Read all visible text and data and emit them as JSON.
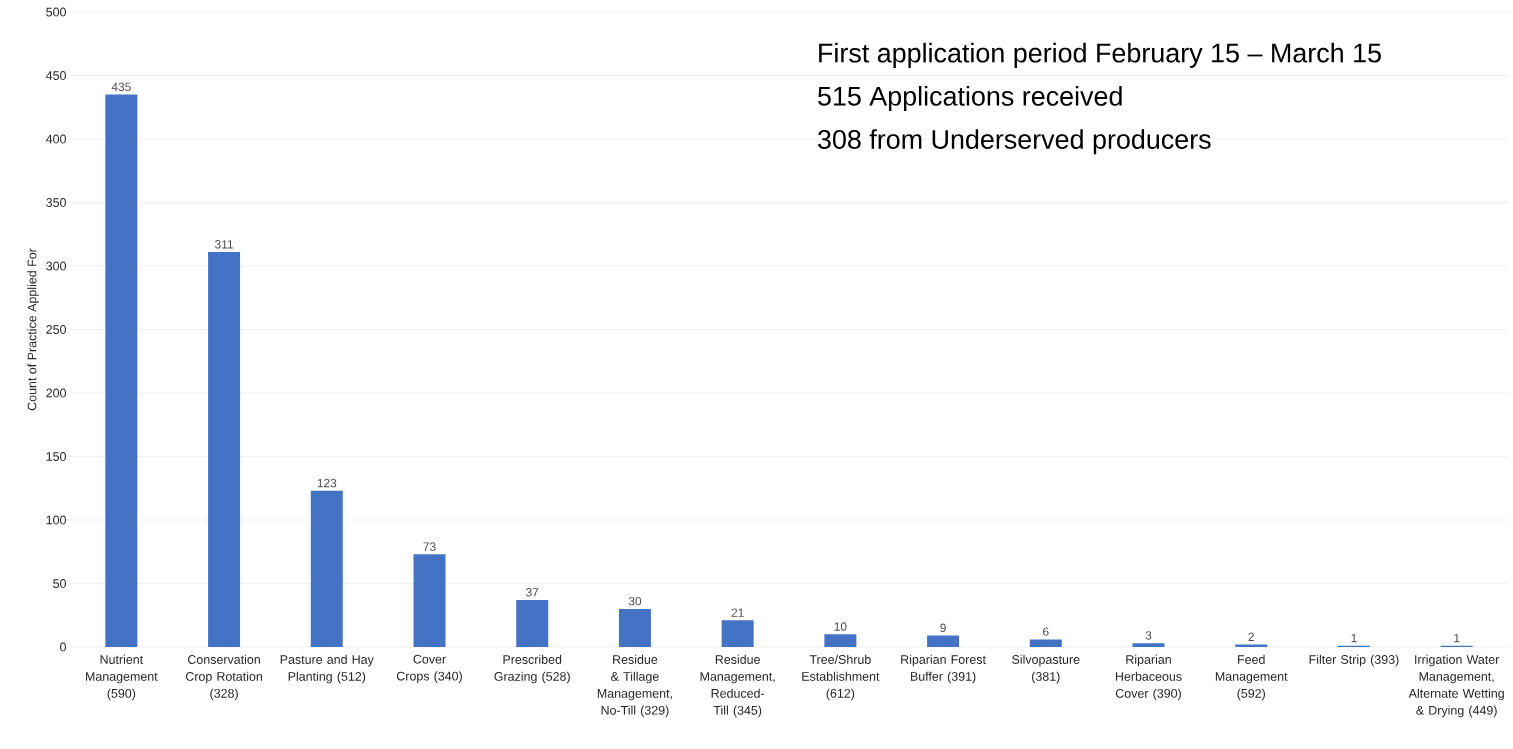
{
  "chart_data": {
    "type": "bar",
    "ylabel": "Count of Practice Applied For",
    "categories": [
      "Nutrient Management (590)",
      "Conservation Crop Rotation (328)",
      "Pasture and Hay Planting (512)",
      "Cover Crops (340)",
      "Prescribed Grazing (528)",
      "Residue & Tillage Management, No-Till (329)",
      "Residue Management, Reduced-Till (345)",
      "Tree/Shrub Establishment (612)",
      "Riparian Forest Buffer (391)",
      "Silvopasture (381)",
      "Riparian Herbaceous Cover (390)",
      "Feed Management (592)",
      "Filter Strip (393)",
      "Irrigation Water Management, Alternate Wetting & Drying (449)"
    ],
    "values": [
      435,
      311,
      123,
      73,
      37,
      30,
      21,
      10,
      9,
      6,
      3,
      2,
      1,
      1
    ],
    "color": "#4472c4",
    "ylim": [
      0,
      500
    ],
    "yticks": [
      0,
      50,
      100,
      150,
      200,
      250,
      300,
      350,
      400,
      450,
      500
    ],
    "grid": "y",
    "data_labels": true,
    "annotations": [
      "First application period February 15 – March 15",
      "515 Applications received",
      "308 from Underserved producers"
    ]
  }
}
